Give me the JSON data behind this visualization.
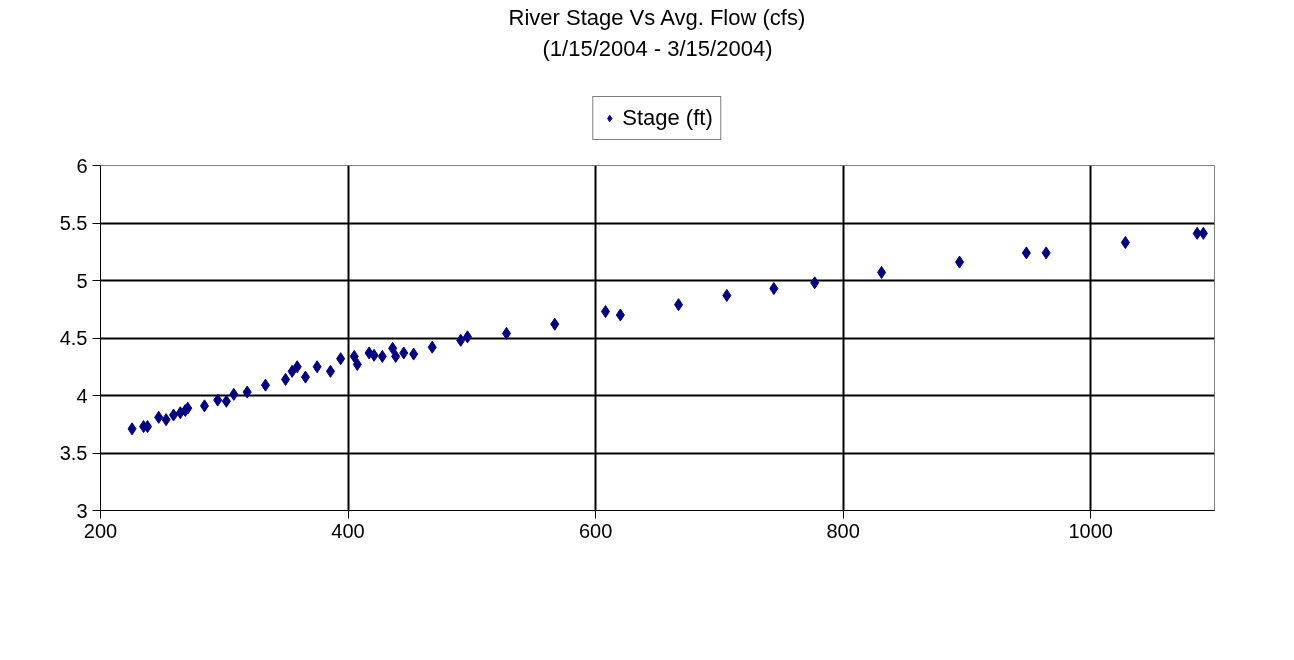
{
  "chart_data": {
    "type": "scatter",
    "title": "River Stage Vs Avg. Flow (cfs)",
    "subtitle": "(1/15/2004 - 3/15/2004)",
    "x": [
      225.5,
      234.8,
      238,
      247,
      253,
      259,
      264.5,
      268.5,
      270.5,
      284,
      294.7,
      301.7,
      307.7,
      318.5,
      333.3,
      349.5,
      354.8,
      358.9,
      365.6,
      375,
      385.8,
      394,
      405,
      407.5,
      417,
      421,
      427.7,
      436,
      438.5,
      445,
      453,
      468,
      491,
      496.5,
      528,
      567,
      608,
      620,
      667,
      706,
      744,
      777,
      831,
      894,
      948,
      964,
      1028,
      1086,
      1091
    ],
    "series": [
      {
        "name": "Stage (ft)",
        "color": "#000080",
        "values": [
          3.71,
          3.73,
          3.73,
          3.81,
          3.79,
          3.83,
          3.85,
          3.87,
          3.89,
          3.91,
          3.96,
          3.95,
          4.01,
          4.03,
          4.09,
          4.14,
          4.21,
          4.25,
          4.16,
          4.25,
          4.21,
          4.32,
          4.34,
          4.27,
          4.37,
          4.35,
          4.34,
          4.41,
          4.34,
          4.37,
          4.36,
          4.42,
          4.48,
          4.51,
          4.54,
          4.62,
          4.73,
          4.7,
          4.79,
          4.87,
          4.93,
          4.98,
          5.07,
          5.16,
          5.24,
          5.24,
          5.33,
          5.41,
          5.41
        ]
      }
    ],
    "xlim": [
      200,
      1100
    ],
    "xticks": [
      200,
      400,
      600,
      800,
      1000
    ],
    "ylim": [
      3,
      6
    ],
    "yticks": [
      3,
      3.5,
      4,
      4.5,
      5,
      5.5,
      6
    ],
    "grid": true,
    "legend": "top",
    "marker": "diamond"
  }
}
